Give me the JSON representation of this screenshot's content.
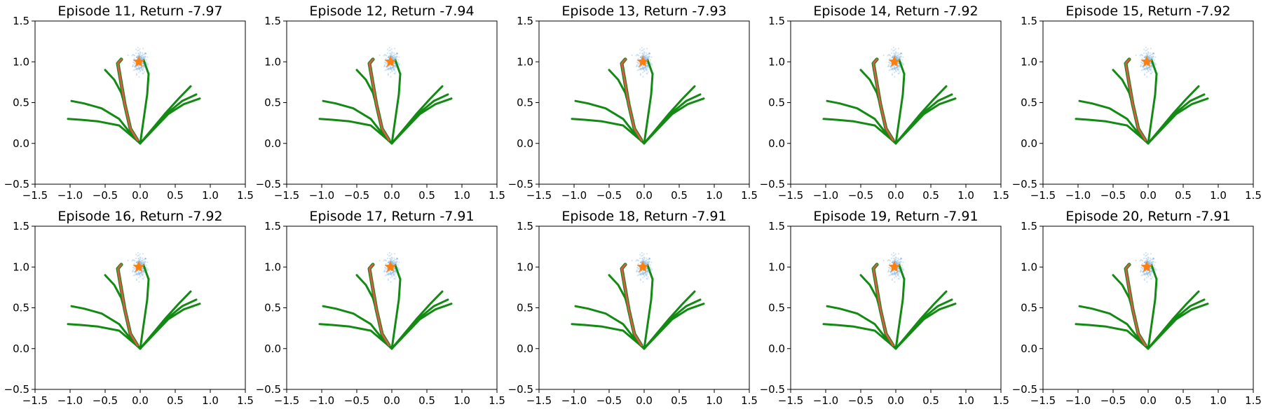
{
  "colors": {
    "trajectory": "#138a13",
    "selected": "#e0584a",
    "samples": "#7fb2e0",
    "target": "#ff7f0e",
    "axis": "#000000"
  },
  "chart_data": [
    {
      "type": "line",
      "title": "Episode 11, Return -7.97",
      "episode": 11,
      "return": -7.97
    },
    {
      "type": "line",
      "title": "Episode 12, Return -7.94",
      "episode": 12,
      "return": -7.94
    },
    {
      "type": "line",
      "title": "Episode 13, Return -7.93",
      "episode": 13,
      "return": -7.93
    },
    {
      "type": "line",
      "title": "Episode 14, Return -7.92",
      "episode": 14,
      "return": -7.92
    },
    {
      "type": "line",
      "title": "Episode 15, Return -7.92",
      "episode": 15,
      "return": -7.92
    },
    {
      "type": "line",
      "title": "Episode 16, Return -7.92",
      "episode": 16,
      "return": -7.92
    },
    {
      "type": "line",
      "title": "Episode 17, Return -7.91",
      "episode": 17,
      "return": -7.91
    },
    {
      "type": "line",
      "title": "Episode 18, Return -7.91",
      "episode": 18,
      "return": -7.91
    },
    {
      "type": "line",
      "title": "Episode 19, Return -7.91",
      "episode": 19,
      "return": -7.91
    },
    {
      "type": "line",
      "title": "Episode 20, Return -7.91",
      "episode": 20,
      "return": -7.91
    }
  ],
  "shared": {
    "xlim": [
      -1.5,
      1.5
    ],
    "ylim": [
      -0.5,
      1.5
    ],
    "xticks": [
      -1.5,
      -1.0,
      -0.5,
      0.0,
      0.5,
      1.0,
      1.5
    ],
    "yticks": [
      -0.5,
      0.0,
      0.5,
      1.0,
      1.5
    ],
    "xtick_labels": [
      "−1.5",
      "−1.0",
      "−0.5",
      "0.0",
      "0.5",
      "1.0",
      "1.5"
    ],
    "ytick_labels": [
      "−0.5",
      "0.0",
      "0.5",
      "1.0",
      "1.5"
    ],
    "target": {
      "x": -0.02,
      "y": 1.0,
      "marker": "star"
    },
    "sample_cloud": {
      "center_x": 0.0,
      "center_y": 1.0,
      "count": 220
    },
    "trajectories": [
      {
        "name": "traj-1",
        "points": [
          [
            0,
            0
          ],
          [
            -0.08,
            0.06
          ],
          [
            -0.3,
            0.22
          ],
          [
            -0.6,
            0.27
          ],
          [
            -0.85,
            0.29
          ],
          [
            -1.03,
            0.3
          ]
        ]
      },
      {
        "name": "traj-2",
        "points": [
          [
            0,
            0
          ],
          [
            -0.1,
            0.08
          ],
          [
            -0.3,
            0.3
          ],
          [
            -0.55,
            0.43
          ],
          [
            -0.8,
            0.49
          ],
          [
            -0.98,
            0.52
          ]
        ]
      },
      {
        "name": "traj-3",
        "points": [
          [
            0,
            0
          ],
          [
            -0.12,
            0.12
          ],
          [
            -0.2,
            0.4
          ],
          [
            -0.27,
            0.62
          ],
          [
            -0.37,
            0.78
          ],
          [
            -0.5,
            0.9
          ]
        ]
      },
      {
        "name": "traj-4",
        "points": [
          [
            0,
            0
          ],
          [
            -0.12,
            0.12
          ],
          [
            -0.2,
            0.4
          ],
          [
            -0.28,
            0.75
          ],
          [
            -0.32,
            0.98
          ],
          [
            -0.26,
            1.03
          ]
        ]
      },
      {
        "name": "traj-5",
        "points": [
          [
            0,
            0
          ],
          [
            0.05,
            0.3
          ],
          [
            0.1,
            0.6
          ],
          [
            0.12,
            0.85
          ],
          [
            0.05,
            1.02
          ]
        ]
      },
      {
        "name": "traj-6",
        "points": [
          [
            0,
            0
          ],
          [
            0.35,
            0.36
          ],
          [
            0.55,
            0.55
          ],
          [
            0.72,
            0.7
          ]
        ]
      },
      {
        "name": "traj-7",
        "points": [
          [
            0,
            0
          ],
          [
            0.4,
            0.38
          ],
          [
            0.6,
            0.52
          ],
          [
            0.8,
            0.6
          ]
        ]
      },
      {
        "name": "traj-8",
        "points": [
          [
            0,
            0
          ],
          [
            0.4,
            0.36
          ],
          [
            0.62,
            0.48
          ],
          [
            0.85,
            0.55
          ]
        ]
      }
    ],
    "selected_trajectory": {
      "name": "selected",
      "points": [
        [
          -0.04,
          0.04
        ],
        [
          -0.14,
          0.18
        ],
        [
          -0.22,
          0.48
        ],
        [
          -0.28,
          0.78
        ],
        [
          -0.32,
          0.98
        ],
        [
          -0.27,
          1.03
        ]
      ]
    }
  }
}
